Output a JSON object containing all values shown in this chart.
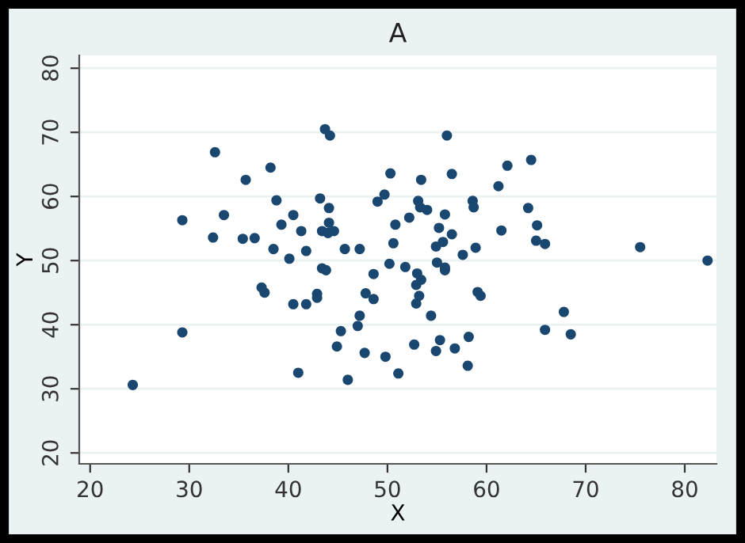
{
  "chart_data": {
    "type": "scatter",
    "title": "A",
    "xlabel": "X",
    "ylabel": "Y",
    "xlim": [
      18.9,
      83.2
    ],
    "ylim": [
      18.3,
      82
    ],
    "xticks": [
      20,
      30,
      40,
      50,
      60,
      70,
      80
    ],
    "yticks": [
      20,
      30,
      40,
      50,
      60,
      70,
      80
    ],
    "grid": "y",
    "marker": "circle",
    "legend": false,
    "series": [
      {
        "color": "#1a476f",
        "x": [
          24.3,
          29.3,
          29.3,
          32.4,
          32.6,
          33.5,
          35.4,
          35.7,
          36.6,
          37.3,
          37.6,
          38.2,
          38.5,
          38.8,
          39.3,
          40.1,
          40.5,
          40.5,
          41.0,
          41.3,
          41.8,
          41.8,
          42.9,
          42.9,
          43.4,
          43.8,
          43.2,
          43.4,
          43.7,
          44.2,
          44.0,
          44.1,
          44.1,
          44.6,
          44.9,
          45.3,
          46.0,
          45.7,
          47.2,
          47.0,
          47.2,
          47.7,
          47.8,
          48.6,
          48.6,
          56.0,
          64.5,
          62.1,
          50.3,
          56.5,
          53.4,
          61.2,
          49.7,
          49.0,
          53.1,
          53.3,
          54.0,
          58.6,
          58.7,
          64.2,
          55.8,
          52.2,
          50.8,
          55.2,
          65.1,
          61.5,
          50.6,
          54.9,
          55.6,
          56.5,
          58.9,
          57.6,
          65.0,
          65.9,
          75.5,
          82.3,
          50.2,
          51.8,
          55.0,
          55.8,
          53.0,
          53.4,
          52.9,
          53.2,
          52.9,
          55.8,
          59.1,
          59.4,
          54.4,
          49.8,
          51.1,
          52.7,
          54.9,
          55.3,
          56.8,
          58.2,
          58.1,
          65.9,
          67.8,
          68.5
        ],
        "values": [
          30.6,
          38.8,
          56.3,
          53.6,
          66.9,
          57.1,
          53.4,
          62.6,
          53.5,
          45.8,
          45.0,
          64.5,
          51.8,
          59.4,
          55.6,
          50.3,
          57.1,
          43.2,
          32.5,
          54.6,
          43.2,
          51.5,
          44.8,
          44.2,
          48.8,
          48.5,
          59.7,
          54.6,
          70.5,
          69.5,
          54.3,
          55.9,
          58.2,
          54.6,
          36.6,
          39.0,
          31.4,
          51.8,
          51.8,
          39.8,
          41.4,
          35.6,
          44.9,
          44.0,
          47.9,
          69.5,
          65.7,
          64.8,
          63.6,
          63.5,
          62.6,
          61.6,
          60.3,
          59.2,
          59.3,
          58.3,
          57.9,
          59.3,
          58.3,
          58.2,
          57.2,
          56.7,
          55.6,
          55.1,
          55.5,
          54.7,
          52.7,
          52.2,
          52.9,
          54.1,
          52.0,
          50.9,
          53.1,
          52.6,
          52.1,
          50.0,
          49.5,
          49.0,
          49.7,
          48.9,
          48.0,
          47.0,
          46.2,
          44.5,
          43.3,
          48.5,
          45.1,
          44.5,
          41.4,
          35.0,
          32.4,
          36.9,
          35.9,
          37.6,
          36.3,
          38.1,
          33.6,
          39.2,
          42.0,
          38.5
        ]
      }
    ]
  }
}
